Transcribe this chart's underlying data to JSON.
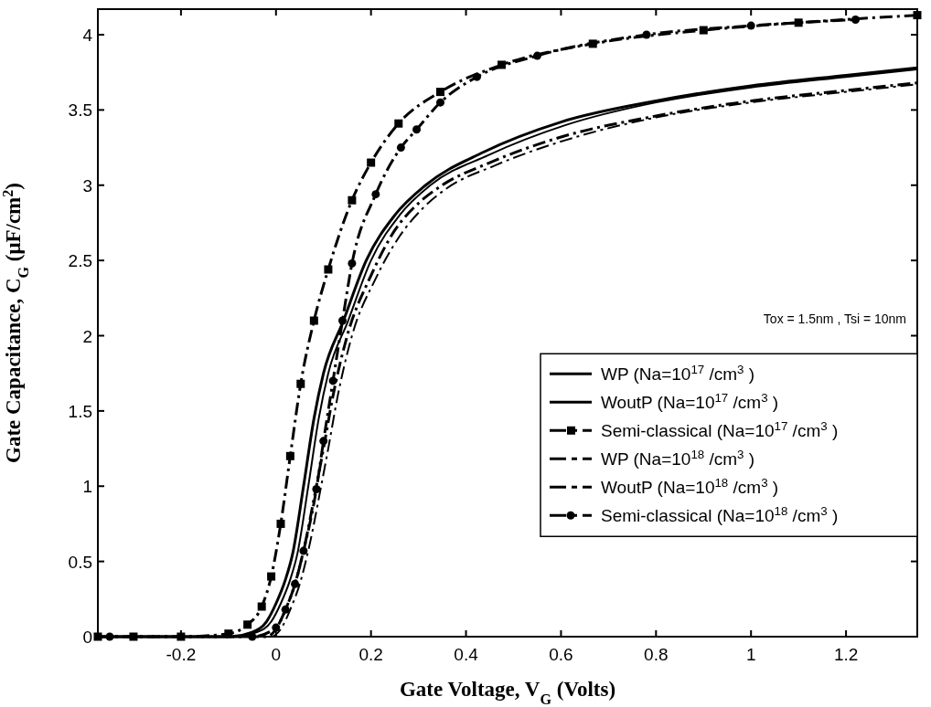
{
  "chart_data": {
    "type": "line",
    "xlabel": "Gate Voltage, V$_{G}$ (Volts)",
    "ylabel": "Gate Capacitance, C$_{G}$ (μF/cm$^{2}$)",
    "xlim": [
      -0.375,
      1.35
    ],
    "ylim": [
      0,
      4.17
    ],
    "xticks": [
      -0.2,
      0,
      0.2,
      0.4,
      0.6,
      0.8,
      1,
      1.2
    ],
    "yticks": [
      0,
      0.5,
      1,
      1.5,
      2,
      2.5,
      3,
      3.5,
      4
    ],
    "grid": false,
    "legend": "bottom right",
    "annotations": [
      "Tox = 1.5nm , Tsi = 10nm"
    ],
    "series": [
      {
        "name": "WP (Na=10$^{17}$ /cm$^{3}$ )",
        "color": "#000000",
        "line_style": "solid",
        "marker": "none",
        "x": [
          -0.375,
          -0.1,
          -0.05,
          -0.02,
          0,
          0.02,
          0.035,
          0.058,
          0.08,
          0.1,
          0.142,
          0.19,
          0.25,
          0.315,
          0.437,
          0.6,
          0.8,
          1,
          1.2,
          1.35
        ],
        "values": [
          0,
          0,
          0.03,
          0.1,
          0.22,
          0.38,
          0.55,
          1,
          1.45,
          1.75,
          2.1,
          2.5,
          2.8,
          3,
          3.22,
          3.42,
          3.56,
          3.66,
          3.73,
          3.78
        ]
      },
      {
        "name": "WoutP (Na=10$^{17}$ /cm$^{3}$ )",
        "color": "#000000",
        "line_style": "solid",
        "marker": "none",
        "x": [
          -0.375,
          -0.09,
          -0.04,
          -0.01,
          0.01,
          0.03,
          0.045,
          0.068,
          0.09,
          0.11,
          0.152,
          0.2,
          0.26,
          0.325,
          0.447,
          0.61,
          0.8,
          1,
          1.2,
          1.35
        ],
        "values": [
          0,
          0,
          0.03,
          0.1,
          0.22,
          0.38,
          0.55,
          1,
          1.45,
          1.75,
          2.1,
          2.5,
          2.8,
          3,
          3.2,
          3.4,
          3.55,
          3.65,
          3.72,
          3.77
        ]
      },
      {
        "name": "Semi-classical (Na=10$^{17}$ /cm$^{3}$ )",
        "color": "#000000",
        "line_style": "dashed",
        "marker": "square",
        "x": [
          -0.375,
          -0.3,
          -0.2,
          -0.1,
          -0.06,
          -0.03,
          -0.01,
          0.01,
          0.03,
          0.052,
          0.08,
          0.11,
          0.16,
          0.2,
          0.258,
          0.346,
          0.475,
          0.667,
          0.9,
          1.1,
          1.35
        ],
        "values": [
          0,
          0,
          0,
          0.02,
          0.08,
          0.2,
          0.4,
          0.75,
          1.2,
          1.68,
          2.1,
          2.44,
          2.9,
          3.15,
          3.41,
          3.62,
          3.8,
          3.94,
          4.03,
          4.08,
          4.13
        ]
      },
      {
        "name": "WP (Na=10$^{18}$ /cm$^{3}$ )",
        "color": "#000000",
        "line_style": "dashed",
        "marker": "none",
        "x": [
          -0.375,
          -0.02,
          0,
          0.02,
          0.04,
          0.06,
          0.085,
          0.1,
          0.12,
          0.15,
          0.2,
          0.25,
          0.3,
          0.35,
          0.45,
          0.6,
          0.8,
          1,
          1.2,
          1.35
        ],
        "values": [
          0,
          0,
          0.05,
          0.18,
          0.35,
          0.6,
          1,
          1.25,
          1.6,
          2,
          2.4,
          2.7,
          2.88,
          3,
          3.15,
          3.32,
          3.46,
          3.56,
          3.63,
          3.68
        ]
      },
      {
        "name": "WoutP (Na=10$^{18}$ /cm$^{3}$ )",
        "color": "#000000",
        "line_style": "dashed",
        "marker": "none",
        "x": [
          -0.375,
          -0.01,
          0.01,
          0.03,
          0.05,
          0.07,
          0.095,
          0.11,
          0.13,
          0.16,
          0.21,
          0.26,
          0.31,
          0.36,
          0.46,
          0.61,
          0.8,
          1,
          1.2,
          1.35
        ],
        "values": [
          0,
          0,
          0.05,
          0.18,
          0.35,
          0.6,
          1,
          1.25,
          1.6,
          2,
          2.38,
          2.66,
          2.85,
          2.98,
          3.13,
          3.3,
          3.45,
          3.55,
          3.62,
          3.67
        ]
      },
      {
        "name": "Semi-classical (Na=10$^{18}$ /cm$^{3}$ )",
        "color": "#000000",
        "line_style": "dashed",
        "marker": "circle",
        "x": [
          -0.35,
          -0.05,
          0,
          0.02,
          0.04,
          0.058,
          0.085,
          0.1,
          0.12,
          0.14,
          0.16,
          0.21,
          0.263,
          0.296,
          0.346,
          0.423,
          0.55,
          0.78,
          1,
          1.22
        ],
        "values": [
          0,
          0,
          0.06,
          0.18,
          0.35,
          0.57,
          0.98,
          1.3,
          1.7,
          2.1,
          2.48,
          2.94,
          3.25,
          3.37,
          3.55,
          3.72,
          3.86,
          4,
          4.06,
          4.1
        ]
      }
    ]
  }
}
